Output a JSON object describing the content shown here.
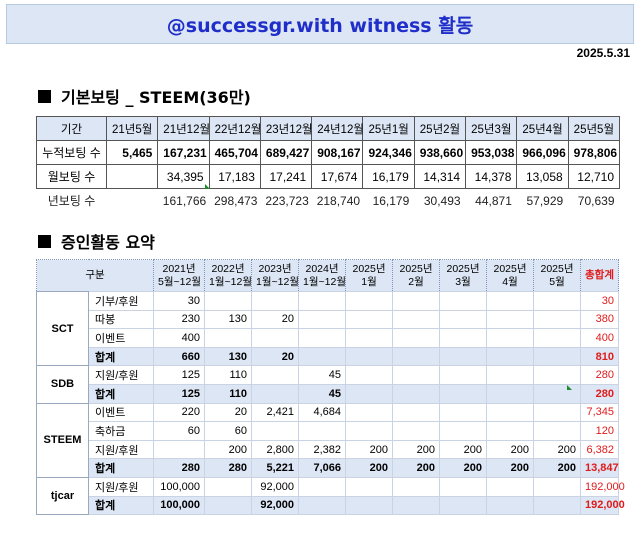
{
  "banner": {
    "title": "@successgr.with witness 활동"
  },
  "date": "2025.5.31",
  "section1": {
    "title": "기본보팅 _ STEEM(36만)",
    "headers": [
      "기간",
      "21년5월",
      "21년12월",
      "22년12월",
      "23년12월",
      "24년12월",
      "25년1월",
      "25년2월",
      "25년3월",
      "25년4월",
      "25년5월"
    ],
    "rows": [
      {
        "label": "누적보팅 수",
        "values": [
          "5,465",
          "167,231",
          "465,704",
          "689,427",
          "908,167",
          "924,346",
          "938,660",
          "953,038",
          "966,096",
          "978,806"
        ]
      },
      {
        "label": "월보팅 수",
        "values": [
          "",
          "34,395",
          "17,183",
          "17,241",
          "17,674",
          "16,179",
          "14,314",
          "14,378",
          "13,058",
          "12,710"
        ]
      },
      {
        "label": "년보팅 수",
        "values": [
          "",
          "161,766",
          "298,473",
          "223,723",
          "218,740",
          "16,179",
          "30,493",
          "44,871",
          "57,929",
          "70,639"
        ]
      }
    ]
  },
  "section2": {
    "title": "증인활동 요약",
    "headers": {
      "group": "구분",
      "cols": [
        [
          "2021년",
          "5월~12월"
        ],
        [
          "2022년",
          "1월~12월"
        ],
        [
          "2023년",
          "1월~12월"
        ],
        [
          "2024년",
          "1월~12월"
        ],
        [
          "2025년",
          "1월"
        ],
        [
          "2025년",
          "2월"
        ],
        [
          "2025년",
          "3월"
        ],
        [
          "2025년",
          "4월"
        ],
        [
          "2025년",
          "5월"
        ]
      ],
      "total": "총합계"
    },
    "groups": [
      {
        "name": "SCT",
        "rows": [
          {
            "label": "기부/후원",
            "values": [
              "30",
              "",
              "",
              "",
              "",
              "",
              "",
              "",
              ""
            ],
            "total": "30"
          },
          {
            "label": "따봉",
            "values": [
              "230",
              "130",
              "20",
              "",
              "",
              "",
              "",
              "",
              ""
            ],
            "total": "380"
          },
          {
            "label": "이벤트",
            "values": [
              "400",
              "",
              "",
              "",
              "",
              "",
              "",
              "",
              ""
            ],
            "total": "400"
          },
          {
            "label": "합계",
            "values": [
              "660",
              "130",
              "20",
              "",
              "",
              "",
              "",
              "",
              ""
            ],
            "total": "810",
            "sum": true
          }
        ]
      },
      {
        "name": "SDB",
        "rows": [
          {
            "label": "지원/후원",
            "values": [
              "125",
              "110",
              "",
              "45",
              "",
              "",
              "",
              "",
              ""
            ],
            "total": "280"
          },
          {
            "label": "합계",
            "values": [
              "125",
              "110",
              "",
              "45",
              "",
              "",
              "",
              "",
              ""
            ],
            "total": "280",
            "sum": true
          }
        ]
      },
      {
        "name": "STEEM",
        "rows": [
          {
            "label": "이벤트",
            "values": [
              "220",
              "20",
              "2,421",
              "4,684",
              "",
              "",
              "",
              "",
              ""
            ],
            "total": "7,345"
          },
          {
            "label": "축하금",
            "values": [
              "60",
              "60",
              "",
              "",
              "",
              "",
              "",
              "",
              ""
            ],
            "total": "120"
          },
          {
            "label": "지원/후원",
            "values": [
              "",
              "200",
              "2,800",
              "2,382",
              "200",
              "200",
              "200",
              "200",
              "200"
            ],
            "total": "6,382"
          },
          {
            "label": "합계",
            "values": [
              "280",
              "280",
              "5,221",
              "7,066",
              "200",
              "200",
              "200",
              "200",
              "200"
            ],
            "total": "13,847",
            "sum": true
          }
        ]
      },
      {
        "name": "tjcar",
        "rows": [
          {
            "label": "지원/후원",
            "values": [
              "100,000",
              "",
              "92,000",
              "",
              "",
              "",
              "",
              "",
              ""
            ],
            "total": "192,000"
          },
          {
            "label": "합계",
            "values": [
              "100,000",
              "",
              "92,000",
              "",
              "",
              "",
              "",
              "",
              ""
            ],
            "total": "192,000",
            "sum": true
          }
        ]
      }
    ]
  }
}
